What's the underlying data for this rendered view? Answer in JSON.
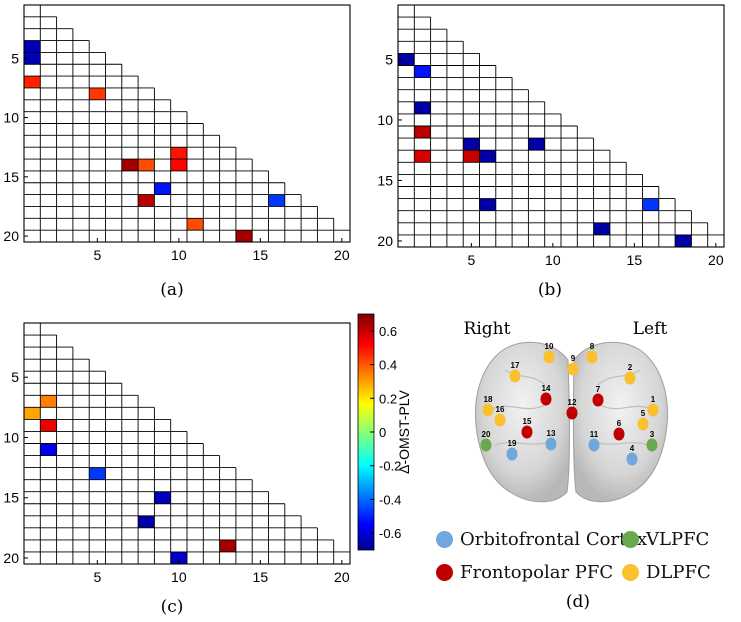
{
  "colors": {
    "orbitofrontal": "#6fa8dc",
    "vlpfc": "#6aa84f",
    "frontopolar": "#c00000",
    "dlpfc": "#fbc02d",
    "grid": "#000000"
  },
  "colorbar": {
    "label": "Δ-OMST-PLV",
    "ticks": [
      0.6,
      0.4,
      0.2,
      0,
      -0.2,
      -0.4,
      -0.6
    ],
    "tick_labels": [
      "0.6",
      "0.4",
      "0.2",
      "0",
      "-0.2",
      "-0.4",
      "-0.6"
    ],
    "range": [
      -0.7,
      0.7
    ],
    "colormap": "jet"
  },
  "chart_data": [
    {
      "type": "heatmap",
      "panel": "(a)",
      "size": 20,
      "xticks": [
        5,
        10,
        15,
        20
      ],
      "yticks": [
        5,
        10,
        15,
        20
      ],
      "cells": [
        {
          "row": 4,
          "col": 1,
          "value": -0.62
        },
        {
          "row": 5,
          "col": 1,
          "value": -0.62
        },
        {
          "row": 7,
          "col": 1,
          "value": 0.48
        },
        {
          "row": 8,
          "col": 5,
          "value": 0.45
        },
        {
          "row": 13,
          "col": 10,
          "value": 0.5
        },
        {
          "row": 14,
          "col": 7,
          "value": 0.65
        },
        {
          "row": 14,
          "col": 8,
          "value": 0.42
        },
        {
          "row": 14,
          "col": 10,
          "value": 0.52
        },
        {
          "row": 16,
          "col": 9,
          "value": -0.5
        },
        {
          "row": 17,
          "col": 8,
          "value": 0.62
        },
        {
          "row": 17,
          "col": 16,
          "value": -0.45
        },
        {
          "row": 19,
          "col": 11,
          "value": 0.42
        },
        {
          "row": 20,
          "col": 14,
          "value": 0.65
        }
      ]
    },
    {
      "type": "heatmap",
      "panel": "(b)",
      "size": 20,
      "xticks": [
        5,
        10,
        15,
        20
      ],
      "yticks": [
        5,
        10,
        15,
        20
      ],
      "cells": [
        {
          "row": 5,
          "col": 1,
          "value": -0.65
        },
        {
          "row": 6,
          "col": 2,
          "value": -0.5
        },
        {
          "row": 9,
          "col": 2,
          "value": -0.65
        },
        {
          "row": 11,
          "col": 2,
          "value": 0.62
        },
        {
          "row": 12,
          "col": 5,
          "value": -0.65
        },
        {
          "row": 12,
          "col": 9,
          "value": -0.65
        },
        {
          "row": 13,
          "col": 2,
          "value": 0.58
        },
        {
          "row": 13,
          "col": 5,
          "value": 0.6
        },
        {
          "row": 13,
          "col": 6,
          "value": -0.65
        },
        {
          "row": 17,
          "col": 6,
          "value": -0.65
        },
        {
          "row": 17,
          "col": 16,
          "value": -0.45
        },
        {
          "row": 19,
          "col": 13,
          "value": -0.65
        },
        {
          "row": 20,
          "col": 18,
          "value": -0.65
        }
      ]
    },
    {
      "type": "heatmap",
      "panel": "(c)",
      "size": 20,
      "xticks": [
        5,
        10,
        15,
        20
      ],
      "yticks": [
        5,
        10,
        15,
        20
      ],
      "cells": [
        {
          "row": 7,
          "col": 2,
          "value": 0.35
        },
        {
          "row": 8,
          "col": 1,
          "value": 0.3
        },
        {
          "row": 9,
          "col": 2,
          "value": 0.55
        },
        {
          "row": 11,
          "col": 2,
          "value": -0.55
        },
        {
          "row": 13,
          "col": 5,
          "value": -0.45
        },
        {
          "row": 15,
          "col": 9,
          "value": -0.62
        },
        {
          "row": 17,
          "col": 8,
          "value": -0.65
        },
        {
          "row": 19,
          "col": 13,
          "value": 0.65
        },
        {
          "row": 20,
          "col": 10,
          "value": -0.6
        }
      ]
    }
  ],
  "brain": {
    "caption": "(d)",
    "right_label": "Right",
    "left_label": "Left",
    "nodes": [
      {
        "id": "1",
        "region": "dlpfc"
      },
      {
        "id": "2",
        "region": "dlpfc"
      },
      {
        "id": "3",
        "region": "vlpfc"
      },
      {
        "id": "4",
        "region": "orbitofrontal"
      },
      {
        "id": "5",
        "region": "dlpfc"
      },
      {
        "id": "6",
        "region": "frontopolar"
      },
      {
        "id": "7",
        "region": "frontopolar"
      },
      {
        "id": "8",
        "region": "dlpfc"
      },
      {
        "id": "9",
        "region": "dlpfc"
      },
      {
        "id": "10",
        "region": "dlpfc"
      },
      {
        "id": "11",
        "region": "orbitofrontal"
      },
      {
        "id": "12",
        "region": "frontopolar"
      },
      {
        "id": "13",
        "region": "orbitofrontal"
      },
      {
        "id": "14",
        "region": "frontopolar"
      },
      {
        "id": "15",
        "region": "frontopolar"
      },
      {
        "id": "16",
        "region": "dlpfc"
      },
      {
        "id": "17",
        "region": "dlpfc"
      },
      {
        "id": "18",
        "region": "dlpfc"
      },
      {
        "id": "19",
        "region": "orbitofrontal"
      },
      {
        "id": "20",
        "region": "vlpfc"
      }
    ],
    "legend": [
      {
        "region": "orbitofrontal",
        "label": "Orbitofrontal Cortex"
      },
      {
        "region": "vlpfc",
        "label": "VLPFC"
      },
      {
        "region": "frontopolar",
        "label": "Frontopolar PFC"
      },
      {
        "region": "dlpfc",
        "label": "DLPFC"
      }
    ]
  }
}
